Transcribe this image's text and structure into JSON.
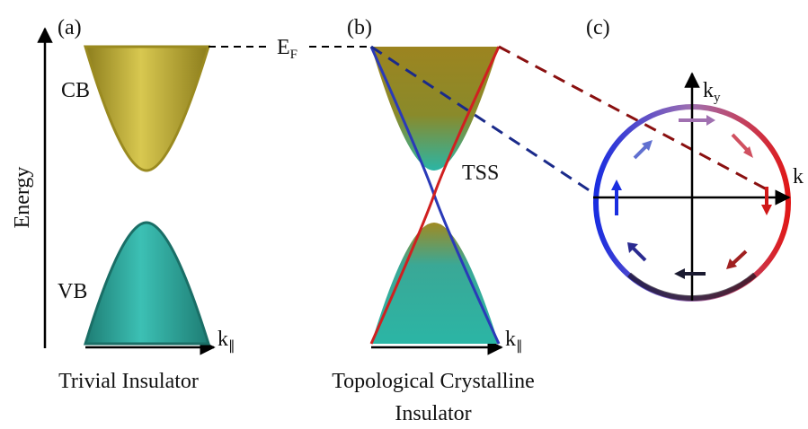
{
  "panel_a": {
    "label": "(a)",
    "axis_y": "Energy",
    "cb": "CB",
    "vb": "VB",
    "axis_x": {
      "main": "k",
      "sub": "∥"
    },
    "caption": "Trivial Insulator"
  },
  "fermi": {
    "main": "E",
    "sub": "F"
  },
  "panel_b": {
    "label": "(b)",
    "tss": "TSS",
    "axis_x": {
      "main": "k",
      "sub": "∥"
    },
    "caption": [
      "Topological Crystalline",
      "Insulator"
    ]
  },
  "panel_c": {
    "label": "(c)",
    "axis_y": {
      "main": "k",
      "sub": "y"
    },
    "axis_x": "k"
  }
}
